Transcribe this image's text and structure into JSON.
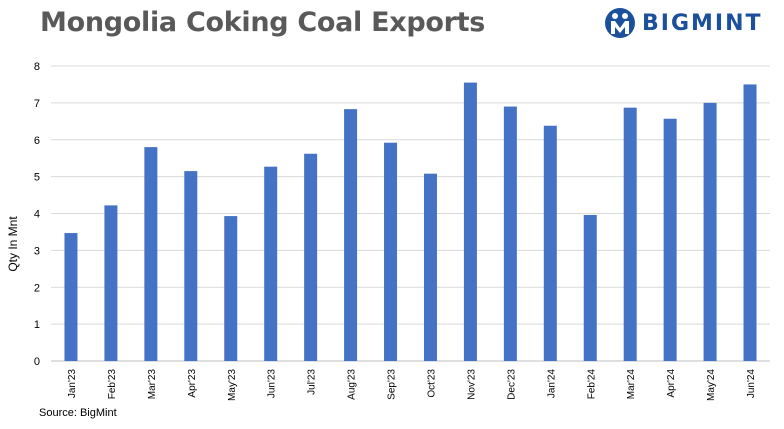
{
  "header": {
    "title": "Mongolia Coking Coal Exports",
    "brand": "BIGMINT"
  },
  "footer": {
    "source": "Source: BigMint"
  },
  "colors": {
    "bar": "#4472c4",
    "title": "#595959",
    "brand": "#1c4f9c",
    "grid": "#d9d9d9"
  },
  "chart_data": {
    "type": "bar",
    "title": "Mongolia Coking Coal Exports",
    "xlabel": "",
    "ylabel": "Qty In Mnt",
    "ylim": [
      0,
      8
    ],
    "yticks": [
      "0",
      "1",
      "2",
      "3",
      "4",
      "5",
      "6",
      "7",
      "8"
    ],
    "grid": true,
    "legend": "none",
    "categories": [
      "Jan'23",
      "Feb'23",
      "Mar'23",
      "Apr'23",
      "May'23",
      "Jun'23",
      "Jul'23",
      "Aug'23",
      "Sep'23",
      "Oct'23",
      "Nov'23",
      "Dec'23",
      "Jan'24",
      "Feb'24",
      "Mar'24",
      "Apr'24",
      "May'24",
      "Jun'24"
    ],
    "values": [
      3.47,
      4.22,
      5.8,
      5.15,
      3.93,
      5.27,
      5.62,
      6.83,
      5.92,
      5.08,
      7.55,
      6.9,
      6.38,
      3.96,
      6.87,
      6.57,
      7.0,
      7.5
    ]
  }
}
